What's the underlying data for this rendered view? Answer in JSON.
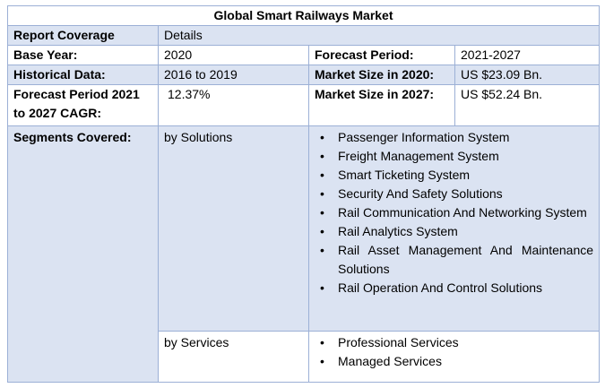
{
  "title": "Global Smart Railways Market",
  "rows": {
    "report_coverage": {
      "label": "Report Coverage",
      "value": "Details"
    },
    "base_year": {
      "label": "Base Year:",
      "value": "2020"
    },
    "forecast_period": {
      "label": "Forecast Period:",
      "value": "2021-2027"
    },
    "historical_data": {
      "label": "Historical Data:",
      "value": "2016 to 2019"
    },
    "market_size_2020": {
      "label": "Market Size in 2020:",
      "value": "US $23.09 Bn."
    },
    "cagr": {
      "label": "Forecast Period 2021 to 2027 CAGR:",
      "value": "12.37%"
    },
    "market_size_2027": {
      "label": "Market Size in 2027:",
      "value": "US $52.24 Bn."
    },
    "segments": {
      "label": "Segments Covered:"
    }
  },
  "segments": {
    "solutions": {
      "label": "by Solutions",
      "items": [
        "Passenger Information System",
        "Freight Management System",
        "Smart Ticketing System",
        "Security And Safety Solutions",
        "Rail Communication And Networking System",
        "Rail Analytics System",
        "Rail Asset Management And Maintenance Solutions",
        "Rail Operation And Control Solutions"
      ]
    },
    "services": {
      "label": "by Services",
      "items": [
        "Professional Services",
        "Managed Services"
      ]
    }
  },
  "bullet_glyph": "•",
  "colors": {
    "blue_cell": "#dbe3f2",
    "border": "#9cb0d6"
  }
}
